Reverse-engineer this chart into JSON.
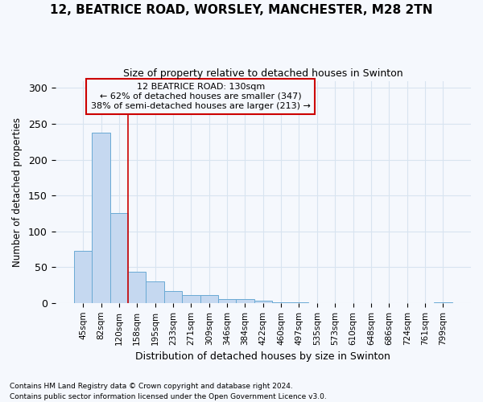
{
  "title_line1": "12, BEATRICE ROAD, WORSLEY, MANCHESTER, M28 2TN",
  "title_line2": "Size of property relative to detached houses in Swinton",
  "xlabel": "Distribution of detached houses by size in Swinton",
  "ylabel": "Number of detached properties",
  "footnote1": "Contains HM Land Registry data © Crown copyright and database right 2024.",
  "footnote2": "Contains public sector information licensed under the Open Government Licence v3.0.",
  "annotation_line1": "12 BEATRICE ROAD: 130sqm",
  "annotation_line2": "← 62% of detached houses are smaller (347)",
  "annotation_line3": "38% of semi-detached houses are larger (213) →",
  "categories": [
    "45sqm",
    "82sqm",
    "120sqm",
    "158sqm",
    "195sqm",
    "233sqm",
    "271sqm",
    "309sqm",
    "346sqm",
    "384sqm",
    "422sqm",
    "460sqm",
    "497sqm",
    "535sqm",
    "573sqm",
    "610sqm",
    "648sqm",
    "686sqm",
    "724sqm",
    "761sqm",
    "799sqm"
  ],
  "values": [
    73,
    238,
    125,
    43,
    30,
    17,
    11,
    11,
    5,
    5,
    3,
    1,
    1,
    0,
    0,
    0,
    0,
    0,
    0,
    0,
    1
  ],
  "bar_color": "#c5d8f0",
  "bar_edge_color": "#6aaad4",
  "vline_color": "#cc0000",
  "vline_x": 2.5,
  "annotation_box_color": "#cc0000",
  "background_color": "#f5f8fd",
  "grid_color": "#d8e4f0",
  "ylim": [
    0,
    310
  ],
  "yticks": [
    0,
    50,
    100,
    150,
    200,
    250,
    300
  ]
}
